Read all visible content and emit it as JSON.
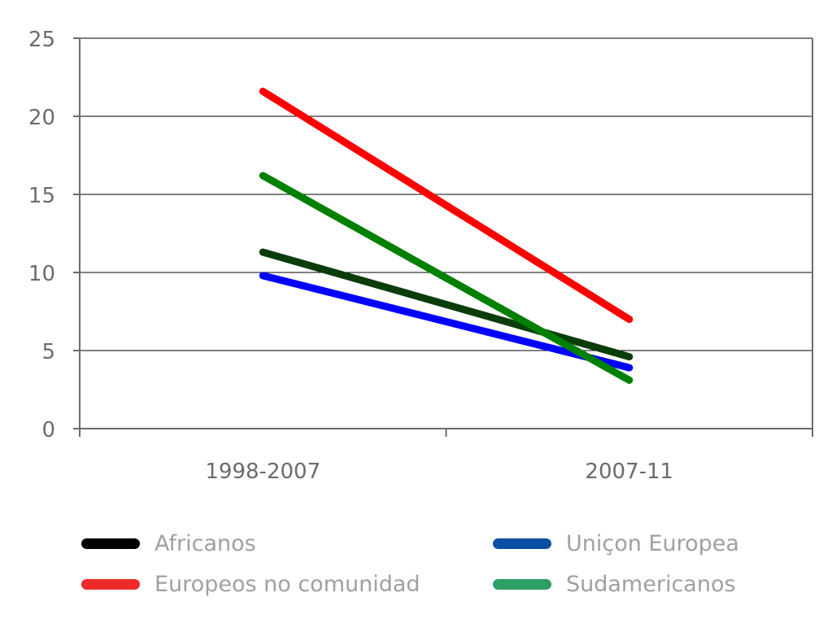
{
  "chart_data": {
    "type": "line",
    "categories": [
      "1998-2007",
      "2007-11"
    ],
    "series": [
      {
        "name": "Africanos",
        "values": [
          11.3,
          4.6
        ],
        "line_color": "#0b3d0b",
        "legend_color": "#000000"
      },
      {
        "name": "Europeos no comunidad",
        "values": [
          21.6,
          7.0
        ],
        "line_color": "#ff0000",
        "legend_color": "#ee2a2a"
      },
      {
        "name": "Uniçon Europea",
        "values": [
          9.8,
          3.9
        ],
        "line_color": "#0000ff",
        "legend_color": "#0b4ea2"
      },
      {
        "name": "Sudamericanos",
        "values": [
          16.2,
          3.1
        ],
        "line_color": "#008000",
        "legend_color": "#2e9e64"
      }
    ],
    "ylim": [
      0,
      25
    ],
    "yticks": [
      "0",
      "5",
      "10",
      "15",
      "20",
      "25"
    ],
    "grid": true,
    "legend_position": "bottom"
  }
}
